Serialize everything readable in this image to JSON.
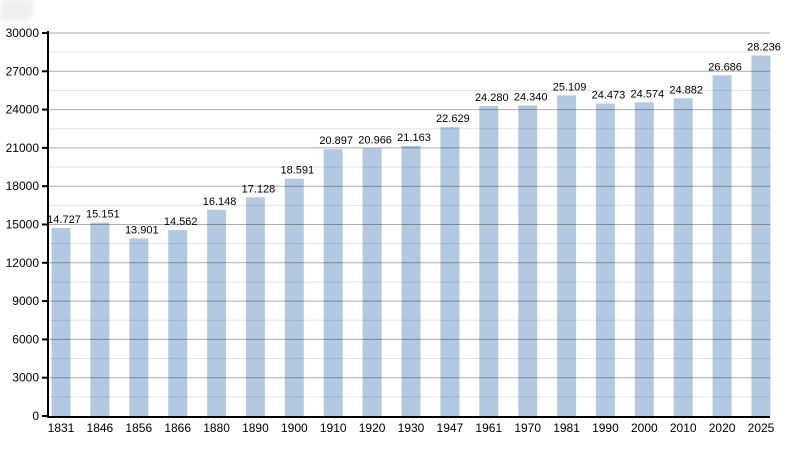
{
  "chart_data": {
    "type": "bar",
    "title": "",
    "xlabel": "",
    "ylabel": "",
    "categories": [
      "1831",
      "1846",
      "1856",
      "1866",
      "1880",
      "1890",
      "1900",
      "1910",
      "1920",
      "1930",
      "1947",
      "1961",
      "1970",
      "1981",
      "1990",
      "2000",
      "2010",
      "2020",
      "2025"
    ],
    "values": [
      14727,
      15151,
      13901,
      14562,
      16148,
      17128,
      18591,
      20897,
      20966,
      21163,
      22629,
      24280,
      24340,
      25109,
      24473,
      24574,
      24882,
      26686,
      28236
    ],
    "value_labels": [
      "14.727",
      "15.151",
      "13.901",
      "14.562",
      "16.148",
      "17.128",
      "18.591",
      "20.897",
      "20.966",
      "21.163",
      "22.629",
      "24.280",
      "24.340",
      "25.109",
      "24.473",
      "24.574",
      "24.882",
      "26.686",
      "28.236"
    ],
    "ylim": [
      0,
      30000
    ],
    "y_major_step": 3000,
    "y_minor_step": 1500,
    "y_tick_labels": [
      "0",
      "3000",
      "6000",
      "9000",
      "12000",
      "15000",
      "18000",
      "21000",
      "24000",
      "27000",
      "30000"
    ],
    "grid": "horizontal",
    "legend": "none"
  },
  "colors": {
    "background": "#ffffff",
    "bar_fill": "#b3c9e2",
    "grid_major": "#ababab",
    "grid_minor": "#e6e6e6",
    "axis": "#000000",
    "label_text": "#000000"
  }
}
